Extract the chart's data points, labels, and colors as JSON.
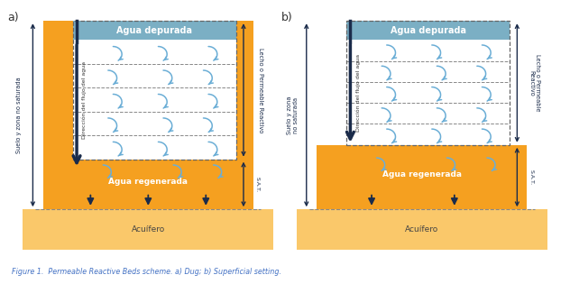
{
  "fig_width": 6.32,
  "fig_height": 3.15,
  "dpi": 100,
  "bg_color": "#ffffff",
  "orange_color": "#F5A020",
  "light_orange_color": "#FAC86A",
  "blue_header_color": "#7BAFC4",
  "white_box_color": "#ffffff",
  "arrow_color": "#6BAED6",
  "dark_arrow_color": "#1A2B4A",
  "caption_color": "#4472C4",
  "caption": "Figure 1.  Permeable Reactive Beds scheme. a) Dug; b) Superficial setting.",
  "label_a": "a)",
  "label_b": "b)",
  "agua_depurada": "Agua depurada",
  "agua_regenerada": "Agua regenerada",
  "acuifero": "Acuífero",
  "lecho_a": "Lecho o Permeable Reactivo",
  "lecho_b": "Lecho o Permeable\nReactivo",
  "suelo_a": "Suelo y zona no saturada",
  "suelo_b": "Suelo y zona\nno saturada",
  "sat": "S.A.T.",
  "direccion": "Dirección del flujo del agua"
}
